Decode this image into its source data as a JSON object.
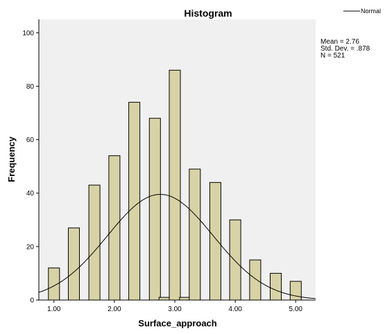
{
  "chart_data": {
    "type": "bar",
    "title": "Histogram",
    "xlabel": "Surface_approach",
    "ylabel": "Frequency",
    "legend": {
      "label": "Normal",
      "placement": "top-right"
    },
    "stats": [
      "Mean = 2.76",
      "Std. Dev. = .878",
      "N = 521"
    ],
    "xlim": [
      0.75,
      5.33
    ],
    "ylim": [
      0,
      105
    ],
    "x_ticks": [
      {
        "value": 1.0,
        "label": "1.00"
      },
      {
        "value": 2.0,
        "label": "2.00"
      },
      {
        "value": 3.0,
        "label": "3.00"
      },
      {
        "value": 4.0,
        "label": "4.00"
      },
      {
        "value": 5.0,
        "label": "5.00"
      }
    ],
    "y_ticks": [
      {
        "value": 0,
        "label": "0"
      },
      {
        "value": 20,
        "label": "20"
      },
      {
        "value": 40,
        "label": "40"
      },
      {
        "value": 60,
        "label": "60"
      },
      {
        "value": 80,
        "label": "80"
      },
      {
        "value": 100,
        "label": "100"
      }
    ],
    "bins": [
      {
        "x": 1.0,
        "count": 12
      },
      {
        "x": 1.33,
        "count": 27
      },
      {
        "x": 1.67,
        "count": 43
      },
      {
        "x": 2.0,
        "count": 54
      },
      {
        "x": 2.33,
        "count": 74
      },
      {
        "x": 2.67,
        "count": 68
      },
      {
        "x": 2.83,
        "count": 1
      },
      {
        "x": 3.0,
        "count": 86
      },
      {
        "x": 3.17,
        "count": 1
      },
      {
        "x": 3.33,
        "count": 49
      },
      {
        "x": 3.67,
        "count": 44
      },
      {
        "x": 4.0,
        "count": 30
      },
      {
        "x": 4.33,
        "count": 15
      },
      {
        "x": 4.67,
        "count": 10
      },
      {
        "x": 5.0,
        "count": 7
      }
    ],
    "normal_curve": {
      "mean": 2.76,
      "sd": 0.878,
      "n": 521,
      "bin_width": 0.167
    },
    "colors": {
      "bar_fill": "#d8d3a6",
      "bar_stroke": "#000000",
      "plot_background": "#f0f0f0",
      "curve": "#000000"
    },
    "grid": false
  }
}
